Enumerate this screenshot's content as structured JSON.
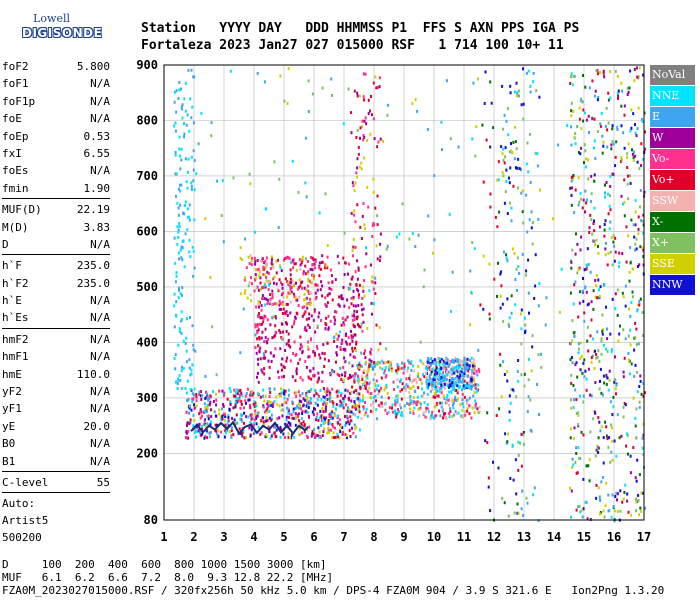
{
  "logo": {
    "line1": "Lowell",
    "line2": "DIGISONDE"
  },
  "header": {
    "labels": "Station   YYYY DAY   DDD HHMMSS P1  FFS S AXN PPS IGA PS",
    "values": "Fortaleza 2023 Jan27 027 015000 RSF   1 714 100 10+ 11"
  },
  "params": {
    "group1": [
      {
        "name": "foF2",
        "value": "5.800"
      },
      {
        "name": "foF1",
        "value": "N/A"
      },
      {
        "name": "foF1p",
        "value": "N/A"
      },
      {
        "name": "foE",
        "value": "N/A"
      },
      {
        "name": "foEp",
        "value": "0.53"
      },
      {
        "name": "fxI",
        "value": "6.55"
      },
      {
        "name": "foEs",
        "value": "N/A"
      },
      {
        "name": "fmin",
        "value": "1.90"
      }
    ],
    "group2": [
      {
        "name": "MUF(D)",
        "value": "22.19"
      },
      {
        "name": "M(D)",
        "value": "3.83"
      },
      {
        "name": "D",
        "value": "N/A"
      }
    ],
    "group3": [
      {
        "name": "h`F",
        "value": "235.0"
      },
      {
        "name": "h`F2",
        "value": "235.0"
      },
      {
        "name": "h`E",
        "value": "N/A"
      },
      {
        "name": "h`Es",
        "value": "N/A"
      }
    ],
    "group4": [
      {
        "name": "hmF2",
        "value": "N/A"
      },
      {
        "name": "hmF1",
        "value": "N/A"
      },
      {
        "name": "hmE",
        "value": "110.0"
      },
      {
        "name": "yF2",
        "value": "N/A"
      },
      {
        "name": "yF1",
        "value": "N/A"
      },
      {
        "name": "yE",
        "value": "20.0"
      },
      {
        "name": "B0",
        "value": "N/A"
      },
      {
        "name": "B1",
        "value": "N/A"
      }
    ],
    "group5": [
      {
        "name": "C-level",
        "value": "55"
      }
    ],
    "auto_label": "Auto:",
    "auto_name": "Artist5",
    "auto_id": "500200"
  },
  "legend": [
    {
      "label": "NoVal",
      "color": "#808080"
    },
    {
      "label": "NNE",
      "color": "#00e5ff"
    },
    {
      "label": "E",
      "color": "#3ea6f0"
    },
    {
      "label": "W",
      "color": "#a0009a"
    },
    {
      "label": "Vo-",
      "color": "#ff3090"
    },
    {
      "label": "Vo+",
      "color": "#e0002a"
    },
    {
      "label": "SSW",
      "color": "#f5b0b0"
    },
    {
      "label": "X-",
      "color": "#007000"
    },
    {
      "label": "X+",
      "color": "#80c060"
    },
    {
      "label": "SSE",
      "color": "#d0d000"
    },
    {
      "label": "NNW",
      "color": "#1010d0"
    }
  ],
  "footer": {
    "d_row": "D     100  200  400  600  800 1000 1500 3000 [km]",
    "muf_row": "MUF   6.1  6.2  6.6  7.2  8.0  9.3 12.8 22.2 [MHz]",
    "info_row": "FZA0M_2023027015000.RSF / 320fx256h 50 kHz 5.0 km / DPS-4 FZA0M 904 / 3.9 S 321.6 E   Ion2Png 1.3.20"
  },
  "chart_data": {
    "type": "scatter",
    "x_ticks": [
      "1",
      "2",
      "3",
      "4",
      "5",
      "6",
      "7",
      "8",
      "9",
      "10",
      "11",
      "12",
      "13",
      "14",
      "15",
      "16",
      "17"
    ],
    "y_ticks": [
      "80",
      "200",
      "300",
      "400",
      "500",
      "600",
      "700",
      "800",
      "900"
    ],
    "xlim": [
      1,
      17
    ],
    "ylim": [
      80,
      900
    ],
    "grid": true,
    "trace": {
      "freq": [
        1.9,
        2.1,
        2.3,
        2.5,
        2.7,
        2.9,
        3.1,
        3.3,
        3.5,
        3.7,
        3.9,
        4.1,
        4.3,
        4.5,
        4.7,
        4.9,
        5.1,
        5.3,
        5.5,
        5.7,
        5.8
      ],
      "height": [
        240,
        252,
        238,
        250,
        243,
        255,
        244,
        256,
        236,
        248,
        252,
        237,
        250,
        243,
        255,
        238,
        250,
        236,
        250,
        242,
        248
      ]
    },
    "echo_clusters": [
      {
        "fmin": 1.7,
        "fmax": 7.5,
        "hmin": 230,
        "hmax": 320,
        "n": 700,
        "colors": [
          "#e0002a",
          "#ff3090",
          "#3ea6f0",
          "#a0009a",
          "#d0d000",
          "#00e5ff",
          "#1010d0"
        ]
      },
      {
        "fmin": 7.3,
        "fmax": 11.5,
        "hmin": 265,
        "hmax": 370,
        "n": 500,
        "colors": [
          "#3ea6f0",
          "#f5b0b0",
          "#e0002a",
          "#d0d000",
          "#ff3090",
          "#00e5ff"
        ]
      },
      {
        "fmin": 9.7,
        "fmax": 11.3,
        "hmin": 320,
        "hmax": 375,
        "n": 300,
        "colors": [
          "#3ea6f0",
          "#00e5ff",
          "#1010d0",
          "#f5b0b0"
        ]
      },
      {
        "fmin": 4.0,
        "fmax": 7.5,
        "hmin": 330,
        "hmax": 560,
        "n": 480,
        "colors": [
          "#a0009a",
          "#ff3090",
          "#a0009a",
          "#e0002a"
        ]
      },
      {
        "fmin": 3.5,
        "fmax": 6.0,
        "hmin": 470,
        "hmax": 560,
        "n": 120,
        "colors": [
          "#d0d000",
          "#f5b0b0",
          "#ff3090"
        ]
      },
      {
        "fmin": 1.3,
        "fmax": 2.0,
        "hmin": 300,
        "hmax": 900,
        "n": 160,
        "colors": [
          "#00e5ff",
          "#3ea6f0"
        ]
      },
      {
        "fmin": 7.2,
        "fmax": 8.2,
        "hmin": 300,
        "hmax": 900,
        "n": 150,
        "colors": [
          "#ff3090",
          "#a0009a",
          "#e0002a",
          "#d0d000"
        ]
      },
      {
        "fmin": 12.2,
        "fmax": 13.5,
        "hmin": 80,
        "hmax": 900,
        "n": 140,
        "colors": [
          "#00e5ff",
          "#3ea6f0",
          "#1010d0",
          "#80c060"
        ]
      },
      {
        "fmin": 14.5,
        "fmax": 17.0,
        "hmin": 80,
        "hmax": 900,
        "n": 650,
        "colors": [
          "#007000",
          "#80c060",
          "#00e5ff",
          "#1010d0",
          "#a0009a",
          "#d0d000",
          "#e0002a",
          "#3ea6f0"
        ]
      },
      {
        "fmin": 11.5,
        "fmax": 13.0,
        "hmin": 80,
        "hmax": 900,
        "n": 80,
        "colors": [
          "#e0002a",
          "#d0d000",
          "#007000",
          "#1010d0"
        ]
      },
      {
        "fmin": 2.0,
        "fmax": 14.5,
        "hmin": 300,
        "hmax": 900,
        "n": 160,
        "colors": [
          "#00e5ff",
          "#3ea6f0",
          "#d0d000",
          "#80c060"
        ]
      }
    ]
  }
}
